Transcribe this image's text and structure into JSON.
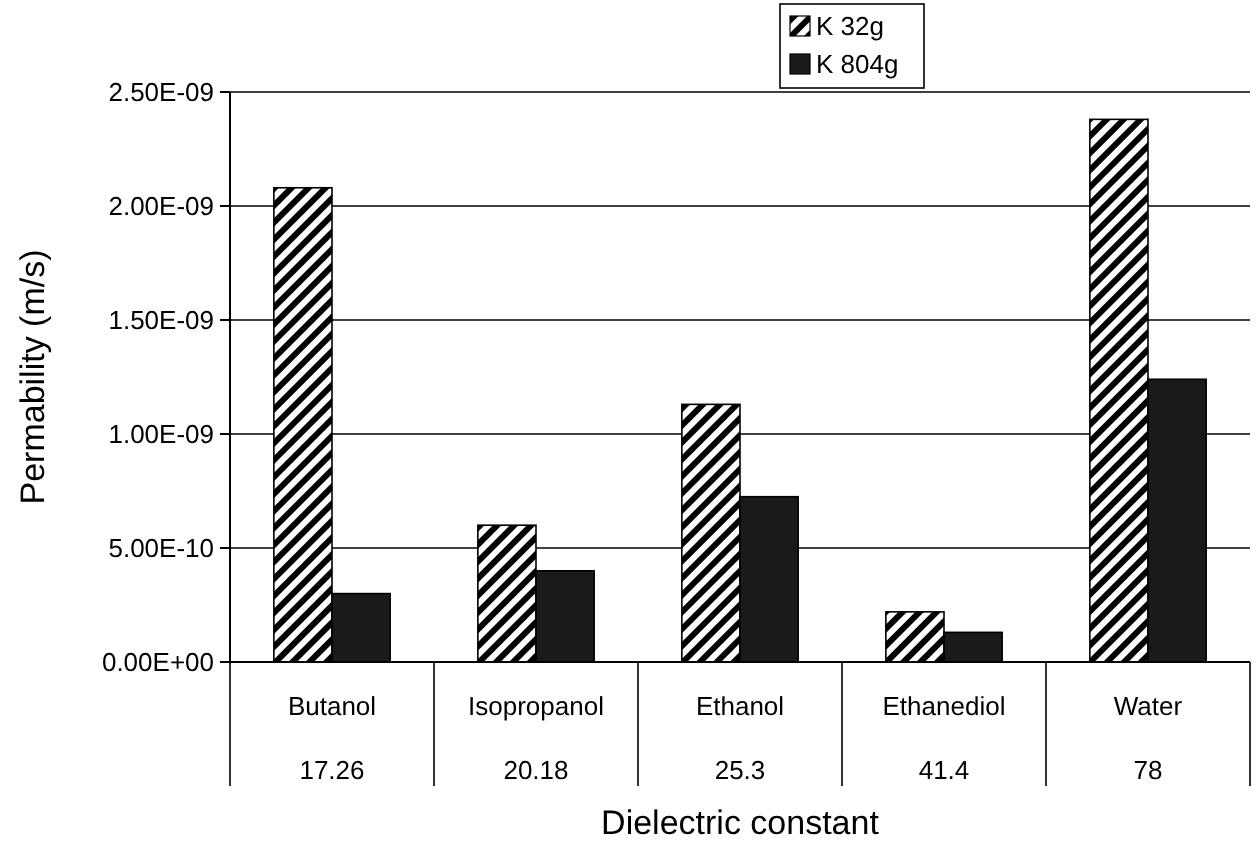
{
  "chart_data": {
    "type": "bar",
    "xlabel": "Dielectric constant",
    "ylabel": "Permability (m/s)",
    "categories": [
      "Butanol\n17.26",
      "Isopropanol\n20.18",
      "Ethanol\n25.3",
      "Ethanediol\n41.4",
      "Water\n78"
    ],
    "series": [
      {
        "name": "K 32g",
        "color": "#000000",
        "values": [
          2.08e-09,
          6e-10,
          1.13e-09,
          2.2e-10,
          2.38e-09
        ]
      },
      {
        "name": "K 804g",
        "color": "#1a1a1a",
        "values": [
          3e-10,
          4e-10,
          7.25e-10,
          1.3e-10,
          1.24e-09
        ]
      }
    ],
    "ylim": [
      0,
      2.5e-09
    ],
    "yticks": [
      {
        "value": 0,
        "label": "0.00E+00"
      },
      {
        "value": 5e-10,
        "label": "5.00E-10"
      },
      {
        "value": 1e-09,
        "label": "1.00E-09"
      },
      {
        "value": 1.5e-09,
        "label": "1.50E-09"
      },
      {
        "value": 2e-09,
        "label": "2.00E-09"
      },
      {
        "value": 2.5e-09,
        "label": "2.50E-09"
      }
    ],
    "grid": "y",
    "legend": "top right"
  }
}
